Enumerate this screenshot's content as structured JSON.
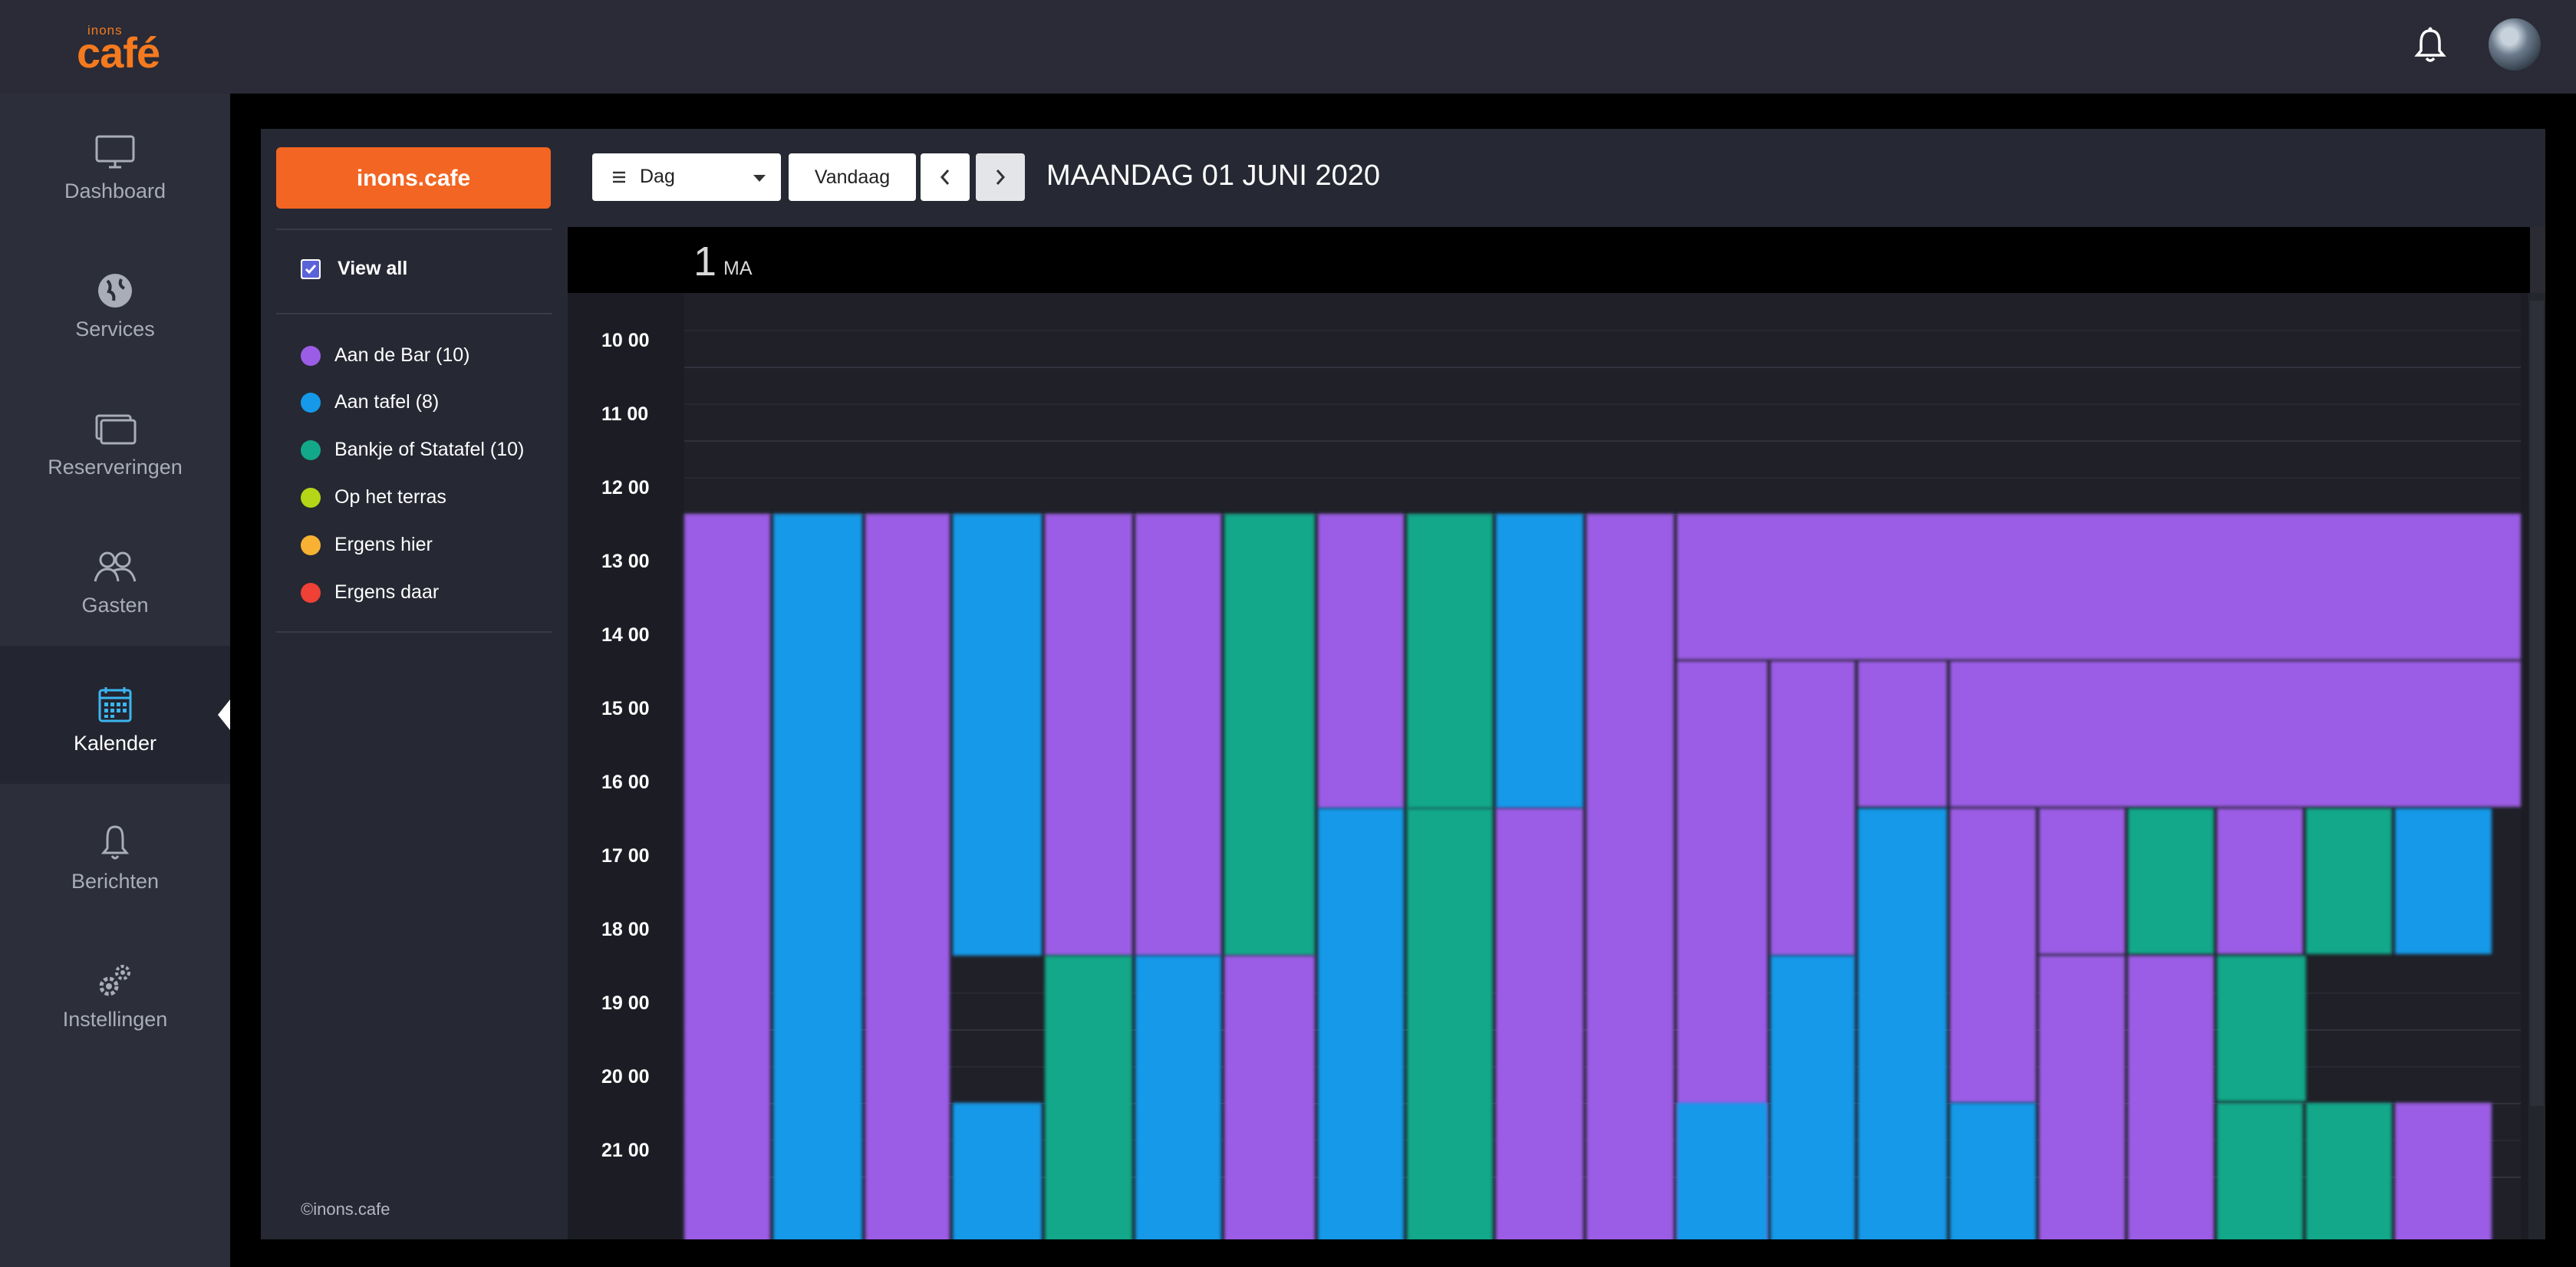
{
  "app": {
    "logo_small": "inons",
    "logo_big": "café"
  },
  "header": {
    "notifications_icon": "bell-icon",
    "avatar": "user-avatar"
  },
  "sidebar": {
    "items": [
      {
        "label": "Dashboard",
        "icon": "monitor-icon",
        "active": false
      },
      {
        "label": "Services",
        "icon": "globe-icon",
        "active": false
      },
      {
        "label": "Reserveringen",
        "icon": "cards-icon",
        "active": false
      },
      {
        "label": "Gasten",
        "icon": "users-icon",
        "active": false
      },
      {
        "label": "Kalender",
        "icon": "calendar-icon",
        "active": true
      },
      {
        "label": "Berichten",
        "icon": "bell-icon",
        "active": false
      },
      {
        "label": "Instellingen",
        "icon": "gears-icon",
        "active": false
      }
    ]
  },
  "panel": {
    "org_button": "inons.cafe",
    "view_all": "View all",
    "view_all_checked": true,
    "categories": [
      {
        "label": "Aan de Bar (10)",
        "color": "#9b5de5"
      },
      {
        "label": "Aan tafel (8)",
        "color": "#1599e8"
      },
      {
        "label": "Bankje of Statafel (10)",
        "color": "#12a889"
      },
      {
        "label": "Op het terras",
        "color": "#b5d617"
      },
      {
        "label": "Ergens hier",
        "color": "#f8b133"
      },
      {
        "label": "Ergens daar",
        "color": "#ef4136"
      }
    ],
    "copyright": "©inons.cafe"
  },
  "calendar": {
    "view_select": "Dag",
    "today_button": "Vandaag",
    "prev_icon": "chevron-left-icon",
    "next_icon": "chevron-right-icon",
    "title": "MAANDAG 01 JUNI 2020",
    "day_number": "1",
    "day_name": "MA",
    "time_labels": [
      "10 00",
      "11 00",
      "12 00",
      "13 00",
      "14 00",
      "15 00",
      "16 00",
      "17 00",
      "18 00",
      "19 00",
      "20 00",
      "21 00"
    ],
    "colors": {
      "bar": "#9b5de5",
      "tafel": "#1599e8",
      "bankje": "#12a889"
    }
  }
}
